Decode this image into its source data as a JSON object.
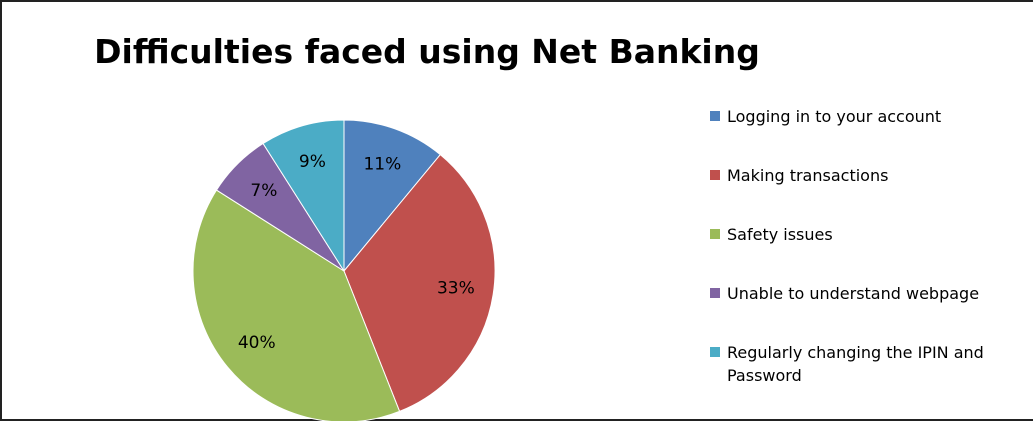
{
  "chart_data": {
    "type": "pie",
    "title": "Difficulties faced using Net Banking",
    "slices": [
      {
        "name": "Logging in to your account",
        "value": 11,
        "label": "11%",
        "color": "#4f81bd"
      },
      {
        "name": "Making transactions",
        "value": 33,
        "label": "33%",
        "color": "#c0504d"
      },
      {
        "name": "Safety issues",
        "value": 40,
        "label": "40%",
        "color": "#9bbb59"
      },
      {
        "name": "Unable to understand webpage",
        "value": 7,
        "label": "7%",
        "color": "#8064a2"
      },
      {
        "name": "Regularly changing the IPIN and\nPassword",
        "value": 9,
        "label": "9%",
        "color": "#4bacc6"
      }
    ],
    "legend_position": "right"
  }
}
